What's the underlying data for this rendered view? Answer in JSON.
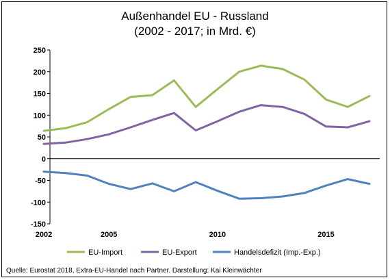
{
  "chart_data": {
    "type": "line",
    "title": "Außenhandel EU - Russland",
    "subtitle": "(2002 - 2017; in Mrd. €)",
    "x": [
      2002,
      2003,
      2004,
      2005,
      2006,
      2007,
      2008,
      2009,
      2010,
      2011,
      2012,
      2013,
      2014,
      2015,
      2016,
      2017
    ],
    "x_tick_labels": [
      "2002",
      "2005",
      "2010",
      "2015"
    ],
    "x_tick_values": [
      2002,
      2005,
      2010,
      2015
    ],
    "y_tick_labels": [
      "250",
      "200",
      "150",
      "100",
      "50",
      "0",
      "-50",
      "-100",
      "-150"
    ],
    "y_tick_values": [
      250,
      200,
      150,
      100,
      50,
      0,
      -50,
      -100,
      -150
    ],
    "ylim": [
      -150,
      250
    ],
    "xlim": [
      2002,
      2017
    ],
    "grid": false,
    "legend_position": "bottom",
    "series": [
      {
        "name": "EU-Import",
        "color": "#9BBB59",
        "values": [
          64,
          70,
          84,
          114,
          142,
          146,
          180,
          119,
          160,
          200,
          214,
          206,
          182,
          136,
          119,
          144
        ]
      },
      {
        "name": "EU-Export",
        "color": "#8064A2",
        "values": [
          34,
          37,
          45,
          56,
          72,
          89,
          105,
          65,
          86,
          108,
          123,
          119,
          103,
          74,
          72,
          86
        ]
      },
      {
        "name": "Handelsdefizit (Imp.-Exp.)",
        "color": "#4F81BD",
        "values": [
          -30,
          -33,
          -39,
          -58,
          -70,
          -57,
          -75,
          -54,
          -74,
          -92,
          -91,
          -87,
          -79,
          -62,
          -47,
          -58
        ]
      }
    ],
    "source": "Quelle: Eurostat 2018, Extra-EU-Handel nach Partner. Darstellung: Kai Kleinwächter"
  }
}
